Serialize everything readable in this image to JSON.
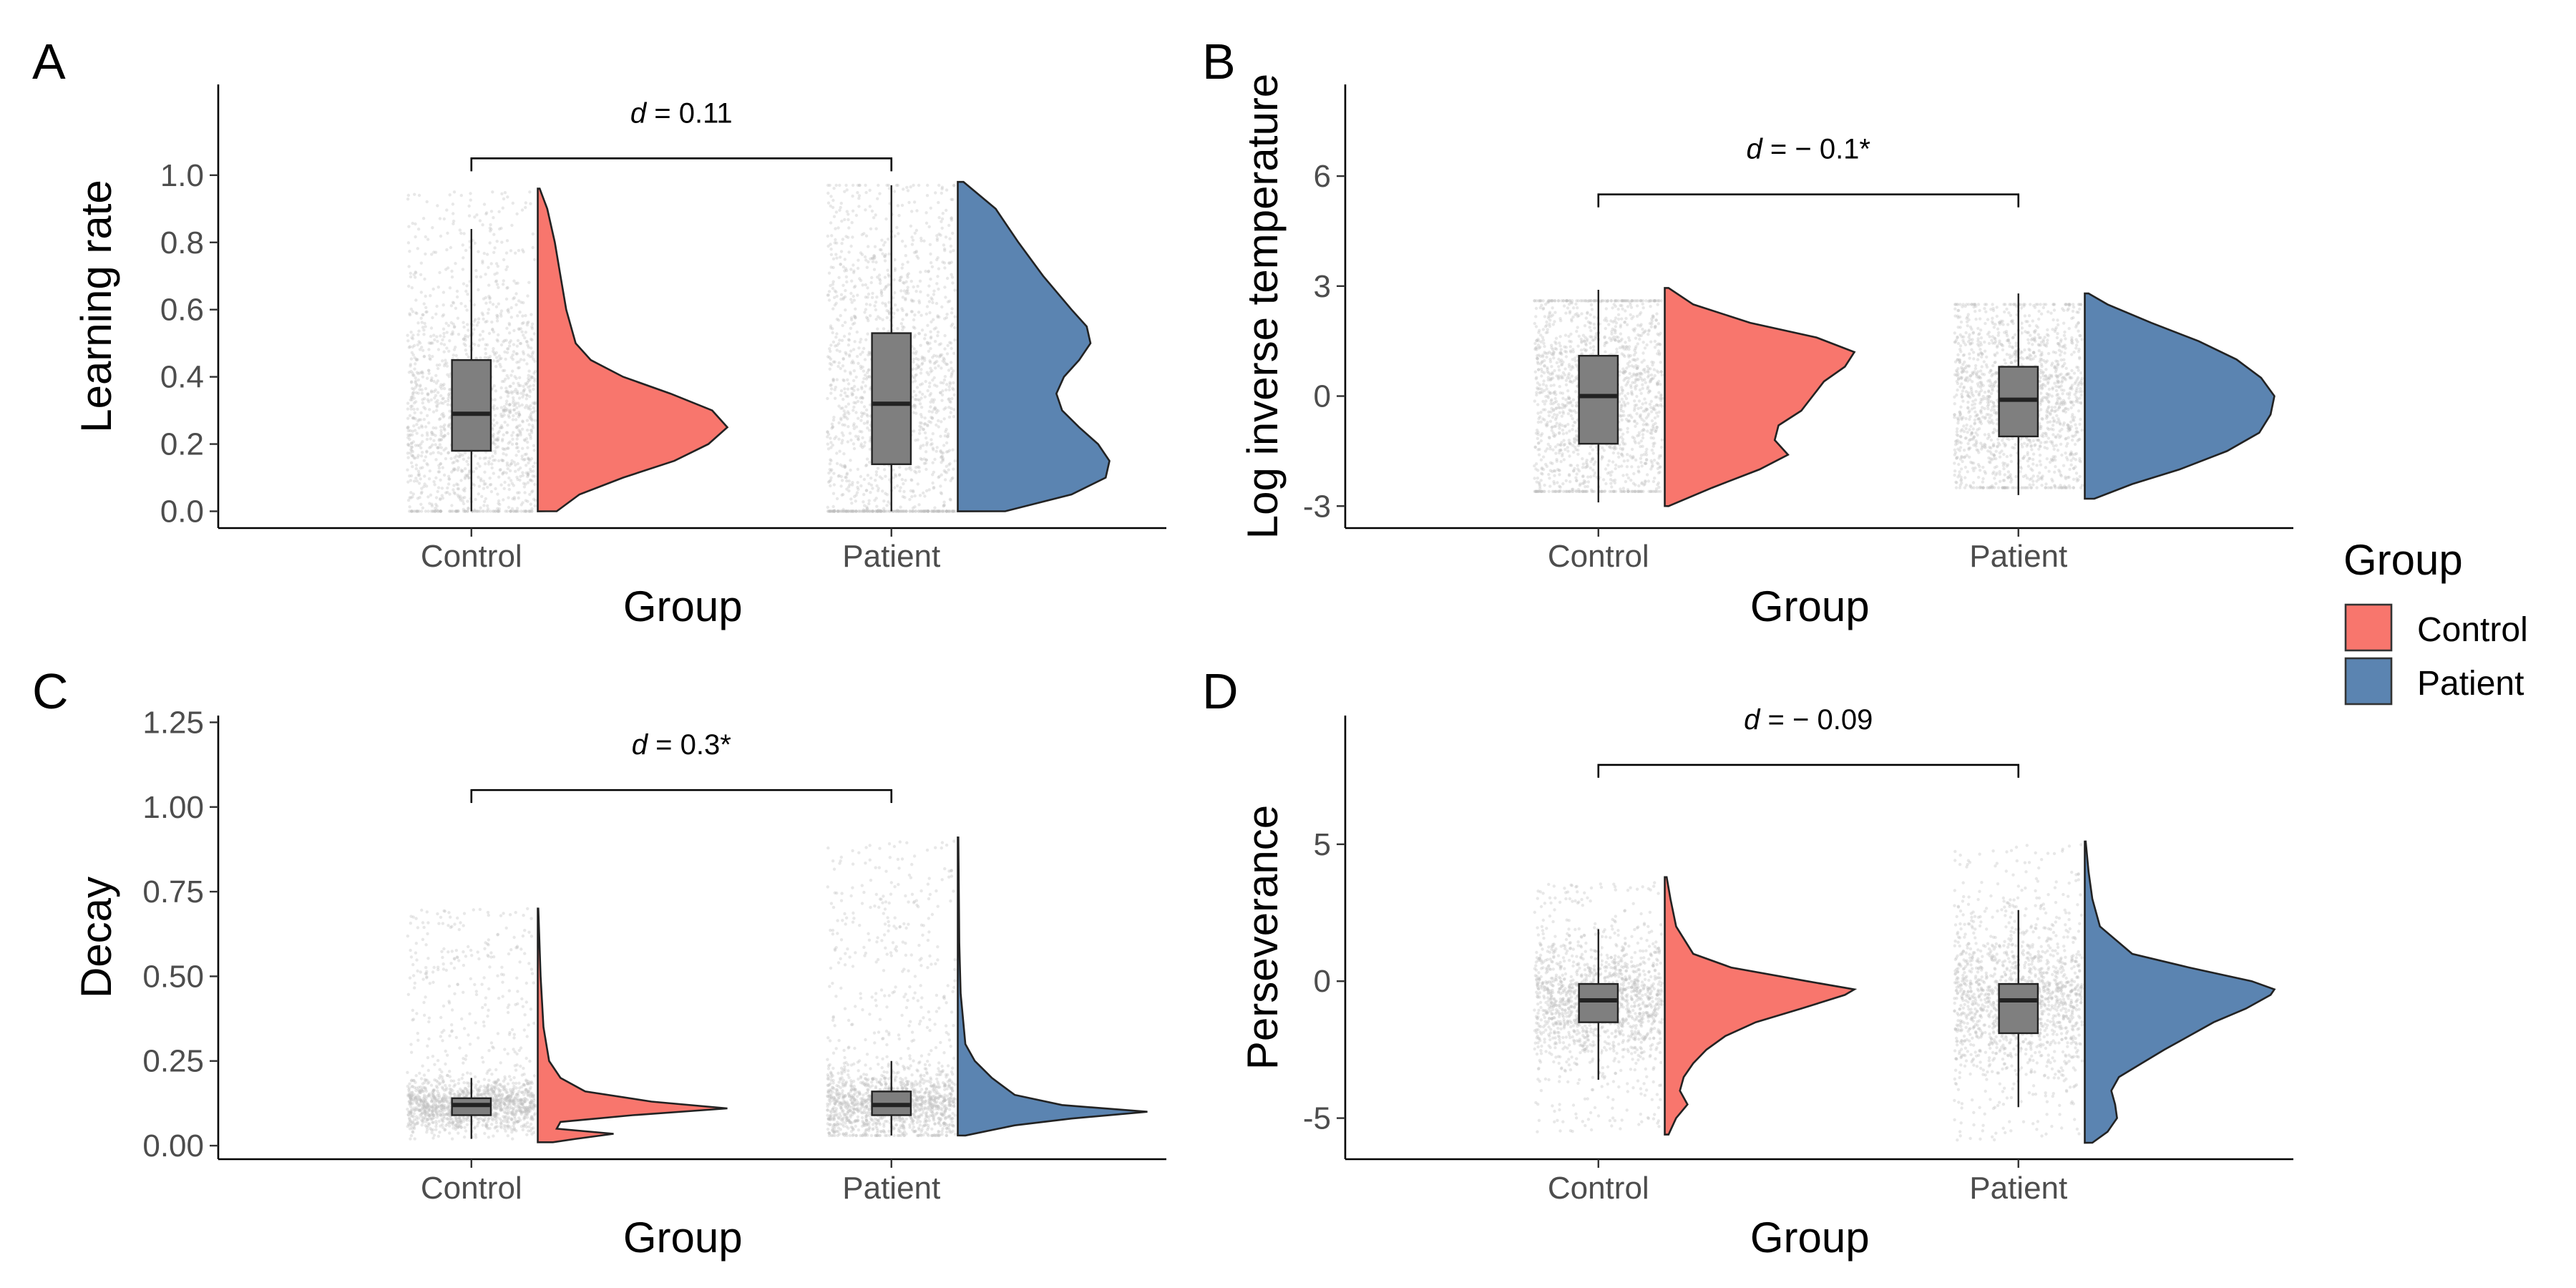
{
  "colors": {
    "Control": "#F8766D",
    "Patient": "#5B84B1"
  },
  "legend": {
    "title": "Group",
    "items": [
      {
        "label": "Control",
        "color": "#F8766D"
      },
      {
        "label": "Patient",
        "color": "#5B84B1"
      }
    ]
  },
  "chart_data": [
    {
      "panel": "A",
      "type": "violin-box-jitter",
      "xlabel": "Group",
      "ylabel": "Learning rate",
      "categories": [
        "Control",
        "Patient"
      ],
      "ylim": [
        -0.05,
        1.27
      ],
      "yticks": [
        0.0,
        0.2,
        0.4,
        0.6,
        0.8,
        1.0
      ],
      "ytick_labels": [
        "0.0",
        "0.2",
        "0.4",
        "0.6",
        "0.8",
        "1.0"
      ],
      "annotation": {
        "prefix": "d",
        "text": " = 0.11",
        "y": 1.05
      },
      "groups": [
        {
          "name": "Control",
          "box": {
            "whisker_low": 0.0,
            "q1": 0.18,
            "median": 0.29,
            "q3": 0.45,
            "whisker_high": 0.84
          },
          "points_range": [
            0.0,
            0.95
          ],
          "density": [
            [
              0.0,
              0.1
            ],
            [
              0.05,
              0.22
            ],
            [
              0.1,
              0.45
            ],
            [
              0.15,
              0.72
            ],
            [
              0.2,
              0.9
            ],
            [
              0.25,
              1.0
            ],
            [
              0.3,
              0.92
            ],
            [
              0.35,
              0.7
            ],
            [
              0.4,
              0.45
            ],
            [
              0.45,
              0.28
            ],
            [
              0.5,
              0.2
            ],
            [
              0.6,
              0.15
            ],
            [
              0.7,
              0.12
            ],
            [
              0.8,
              0.09
            ],
            [
              0.9,
              0.05
            ],
            [
              0.96,
              0.01
            ]
          ]
        },
        {
          "name": "Patient",
          "box": {
            "whisker_low": 0.0,
            "q1": 0.14,
            "median": 0.32,
            "q3": 0.53,
            "whisker_high": 0.97
          },
          "points_range": [
            0.0,
            0.97
          ],
          "density": [
            [
              0.0,
              0.25
            ],
            [
              0.05,
              0.6
            ],
            [
              0.1,
              0.78
            ],
            [
              0.15,
              0.8
            ],
            [
              0.2,
              0.74
            ],
            [
              0.25,
              0.64
            ],
            [
              0.3,
              0.55
            ],
            [
              0.35,
              0.52
            ],
            [
              0.4,
              0.56
            ],
            [
              0.45,
              0.64
            ],
            [
              0.5,
              0.7
            ],
            [
              0.55,
              0.68
            ],
            [
              0.6,
              0.6
            ],
            [
              0.7,
              0.45
            ],
            [
              0.8,
              0.32
            ],
            [
              0.9,
              0.2
            ],
            [
              0.98,
              0.03
            ]
          ]
        }
      ]
    },
    {
      "panel": "B",
      "type": "violin-box-jitter",
      "xlabel": "Group",
      "ylabel": "Log inverse temperature",
      "categories": [
        "Control",
        "Patient"
      ],
      "ylim": [
        -3.6,
        8.5
      ],
      "yticks": [
        -3,
        0,
        3,
        6
      ],
      "ytick_labels": [
        "-3",
        "0",
        "3",
        "6"
      ],
      "annotation": {
        "prefix": "d",
        "text": " = − 0.1*",
        "y": 5.5
      },
      "groups": [
        {
          "name": "Control",
          "box": {
            "whisker_low": -2.9,
            "q1": -1.3,
            "median": 0.0,
            "q3": 1.1,
            "whisker_high": 2.9
          },
          "points_range": [
            -2.6,
            2.6
          ],
          "density": [
            [
              -3.0,
              0.02
            ],
            [
              -2.5,
              0.25
            ],
            [
              -2.0,
              0.5
            ],
            [
              -1.6,
              0.65
            ],
            [
              -1.2,
              0.58
            ],
            [
              -0.8,
              0.6
            ],
            [
              -0.4,
              0.72
            ],
            [
              0.0,
              0.78
            ],
            [
              0.4,
              0.84
            ],
            [
              0.8,
              0.95
            ],
            [
              1.2,
              1.0
            ],
            [
              1.6,
              0.8
            ],
            [
              2.0,
              0.45
            ],
            [
              2.5,
              0.15
            ],
            [
              2.95,
              0.02
            ]
          ]
        },
        {
          "name": "Patient",
          "box": {
            "whisker_low": -2.7,
            "q1": -1.1,
            "median": -0.1,
            "q3": 0.8,
            "whisker_high": 2.8
          },
          "points_range": [
            -2.5,
            2.5
          ],
          "density": [
            [
              -2.8,
              0.05
            ],
            [
              -2.4,
              0.25
            ],
            [
              -2.0,
              0.5
            ],
            [
              -1.5,
              0.75
            ],
            [
              -1.0,
              0.92
            ],
            [
              -0.5,
              0.98
            ],
            [
              0.0,
              1.0
            ],
            [
              0.5,
              0.93
            ],
            [
              1.0,
              0.8
            ],
            [
              1.5,
              0.6
            ],
            [
              2.0,
              0.35
            ],
            [
              2.5,
              0.12
            ],
            [
              2.8,
              0.02
            ]
          ]
        }
      ]
    },
    {
      "panel": "C",
      "type": "violin-box-jitter",
      "xlabel": "Group",
      "ylabel": "Decay",
      "categories": [
        "Control",
        "Patient"
      ],
      "ylim": [
        -0.04,
        1.27
      ],
      "yticks": [
        0.0,
        0.25,
        0.5,
        0.75,
        1.0,
        1.25
      ],
      "ytick_labels": [
        "0.00",
        "0.25",
        "0.50",
        "0.75",
        "1.00",
        "1.25"
      ],
      "annotation": {
        "prefix": "d",
        "text": " = 0.3*",
        "y": 1.05
      },
      "groups": [
        {
          "name": "Control",
          "box": {
            "whisker_low": 0.02,
            "q1": 0.09,
            "median": 0.12,
            "q3": 0.14,
            "whisker_high": 0.2
          },
          "points_range": [
            0.02,
            0.7
          ],
          "density": [
            [
              0.01,
              0.08
            ],
            [
              0.02,
              0.2
            ],
            [
              0.035,
              0.4
            ],
            [
              0.05,
              0.1
            ],
            [
              0.07,
              0.12
            ],
            [
              0.09,
              0.5
            ],
            [
              0.11,
              1.0
            ],
            [
              0.13,
              0.6
            ],
            [
              0.16,
              0.25
            ],
            [
              0.2,
              0.12
            ],
            [
              0.25,
              0.06
            ],
            [
              0.35,
              0.03
            ],
            [
              0.5,
              0.015
            ],
            [
              0.7,
              0.003
            ]
          ]
        },
        {
          "name": "Patient",
          "box": {
            "whisker_low": 0.03,
            "q1": 0.09,
            "median": 0.12,
            "q3": 0.16,
            "whisker_high": 0.25
          },
          "points_range": [
            0.03,
            0.9
          ],
          "density": [
            [
              0.03,
              0.04
            ],
            [
              0.06,
              0.3
            ],
            [
              0.08,
              0.6
            ],
            [
              0.1,
              1.0
            ],
            [
              0.12,
              0.55
            ],
            [
              0.15,
              0.3
            ],
            [
              0.2,
              0.18
            ],
            [
              0.25,
              0.09
            ],
            [
              0.3,
              0.04
            ],
            [
              0.45,
              0.015
            ],
            [
              0.6,
              0.008
            ],
            [
              0.91,
              0.003
            ]
          ]
        }
      ]
    },
    {
      "panel": "D",
      "type": "violin-box-jitter",
      "xlabel": "Group",
      "ylabel": "Perseverance",
      "categories": [
        "Control",
        "Patient"
      ],
      "ylim": [
        -6.5,
        9.7
      ],
      "yticks": [
        -5,
        0,
        5
      ],
      "ytick_labels": [
        "-5",
        "0",
        "5"
      ],
      "annotation": {
        "prefix": "d",
        "text": " = − 0.09",
        "y": 7.9
      },
      "groups": [
        {
          "name": "Control",
          "box": {
            "whisker_low": -3.6,
            "q1": -1.5,
            "median": -0.7,
            "q3": -0.1,
            "whisker_high": 1.9
          },
          "points_range": [
            -5.5,
            3.6
          ],
          "density": [
            [
              -5.6,
              0.02
            ],
            [
              -5.0,
              0.06
            ],
            [
              -4.5,
              0.12
            ],
            [
              -4.0,
              0.08
            ],
            [
              -3.5,
              0.1
            ],
            [
              -3.0,
              0.15
            ],
            [
              -2.5,
              0.22
            ],
            [
              -2.0,
              0.32
            ],
            [
              -1.5,
              0.48
            ],
            [
              -1.0,
              0.72
            ],
            [
              -0.5,
              0.95
            ],
            [
              -0.3,
              1.0
            ],
            [
              0.0,
              0.75
            ],
            [
              0.5,
              0.35
            ],
            [
              1.0,
              0.15
            ],
            [
              2.0,
              0.06
            ],
            [
              3.0,
              0.03
            ],
            [
              3.8,
              0.01
            ]
          ]
        },
        {
          "name": "Patient",
          "box": {
            "whisker_low": -4.6,
            "q1": -1.9,
            "median": -0.7,
            "q3": -0.1,
            "whisker_high": 2.6
          },
          "points_range": [
            -5.8,
            5.0
          ],
          "density": [
            [
              -5.9,
              0.04
            ],
            [
              -5.5,
              0.12
            ],
            [
              -5.0,
              0.17
            ],
            [
              -4.5,
              0.16
            ],
            [
              -4.0,
              0.14
            ],
            [
              -3.5,
              0.18
            ],
            [
              -3.0,
              0.3
            ],
            [
              -2.5,
              0.42
            ],
            [
              -2.0,
              0.55
            ],
            [
              -1.5,
              0.68
            ],
            [
              -1.0,
              0.85
            ],
            [
              -0.5,
              0.98
            ],
            [
              -0.3,
              1.0
            ],
            [
              0.0,
              0.88
            ],
            [
              0.5,
              0.55
            ],
            [
              1.0,
              0.25
            ],
            [
              2.0,
              0.08
            ],
            [
              3.0,
              0.04
            ],
            [
              4.0,
              0.02
            ],
            [
              5.1,
              0.005
            ]
          ]
        }
      ]
    }
  ]
}
